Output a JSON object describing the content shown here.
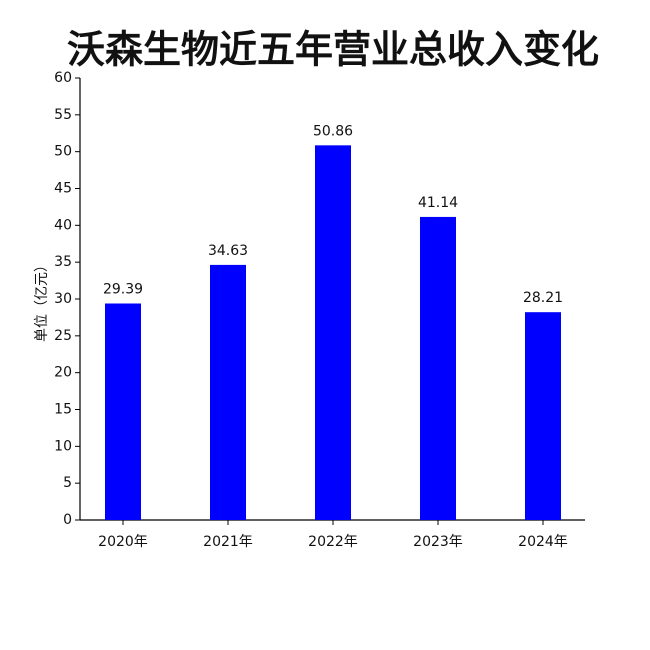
{
  "chart_data": {
    "type": "bar",
    "title": "沃森生物近五年营业总收入变化",
    "y_label": "单位（亿元）",
    "categories": [
      "2020年",
      "2021年",
      "2022年",
      "2023年",
      "2024年"
    ],
    "values": [
      29.39,
      34.63,
      50.86,
      41.14,
      28.21
    ],
    "color": "#0000ff",
    "ylim": [
      0,
      60
    ],
    "yticks": [
      0,
      5,
      10,
      15,
      20,
      25,
      30,
      35,
      40,
      45,
      50,
      55,
      60
    ]
  }
}
